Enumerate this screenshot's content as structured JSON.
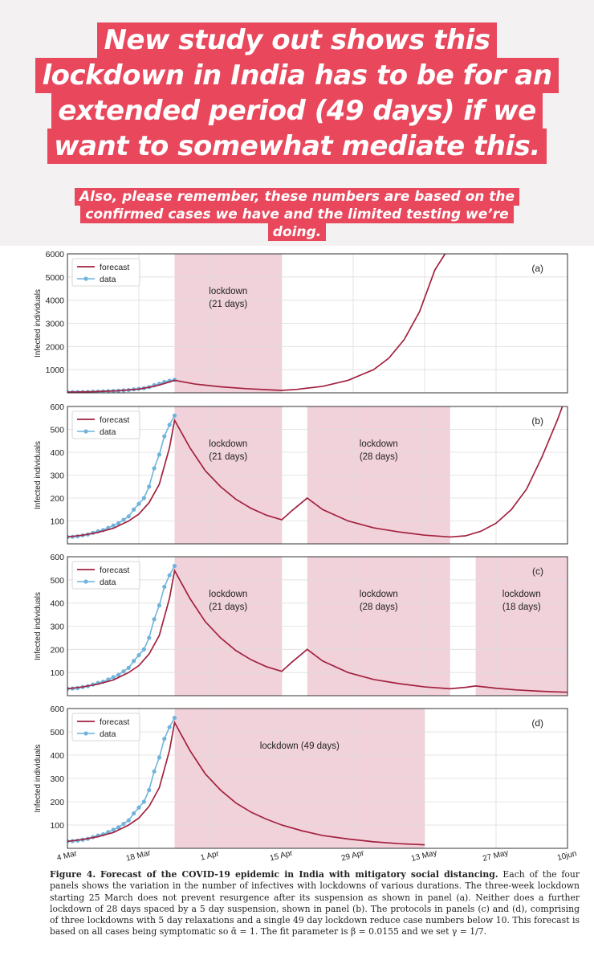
{
  "headline": {
    "lines": [
      "New study out shows this",
      "lockdown in India has to be for an",
      "extended period (49 days) if we",
      "want to somewhat mediate this."
    ]
  },
  "subtitle": {
    "lines": [
      "Also, please remember, these numbers are based on the",
      "confirmed cases we have and the limited testing we’re",
      "doing."
    ]
  },
  "colors": {
    "accent": "#e8475c",
    "forecast": "#a3213f",
    "data": "#6fb4dc",
    "shade": "#f1d2da"
  },
  "chart_data": {
    "type": "line",
    "ylabel": "Infected individuals",
    "x_axis": {
      "start_label": "4 Mar",
      "end_label": "10 Jun",
      "ticks": [
        {
          "day": 0,
          "label": "4 Mar"
        },
        {
          "day": 14,
          "label": "18 Mar"
        },
        {
          "day": 28,
          "label": "1 Apr"
        },
        {
          "day": 42,
          "label": "15 Apr"
        },
        {
          "day": 56,
          "label": "29 Apr"
        },
        {
          "day": 70,
          "label": "13 May"
        },
        {
          "day": 84,
          "label": "27 May"
        },
        {
          "day": 98,
          "label": "10jun"
        }
      ]
    },
    "observed_data": {
      "days": [
        0,
        1,
        2,
        3,
        4,
        5,
        6,
        7,
        8,
        9,
        10,
        11,
        12,
        13,
        14,
        15,
        16,
        17,
        18,
        19,
        20,
        21
      ],
      "values": [
        30,
        31,
        33,
        37,
        41,
        48,
        55,
        60,
        70,
        80,
        90,
        105,
        120,
        150,
        175,
        200,
        250,
        330,
        390,
        470,
        520,
        560
      ]
    },
    "legend": {
      "forecast": "forecast",
      "data": "data"
    },
    "panels": [
      {
        "id": "a",
        "tag": "(a)",
        "ylim": [
          0,
          6000
        ],
        "yticks": [
          "6000",
          "5000",
          "4000",
          "3000",
          "2000",
          "1000"
        ],
        "ytick_values": [
          6000,
          5000,
          4000,
          3000,
          2000,
          1000
        ],
        "lockdowns": [
          {
            "start": 21,
            "end": 42,
            "label_lines": [
              "lockdown",
              "(21 days)"
            ]
          }
        ],
        "forecast": [
          [
            0,
            30
          ],
          [
            5,
            50
          ],
          [
            10,
            90
          ],
          [
            14,
            160
          ],
          [
            17,
            280
          ],
          [
            19,
            400
          ],
          [
            21,
            540
          ],
          [
            25,
            380
          ],
          [
            30,
            260
          ],
          [
            35,
            180
          ],
          [
            40,
            125
          ],
          [
            42,
            105
          ],
          [
            45,
            150
          ],
          [
            50,
            280
          ],
          [
            55,
            540
          ],
          [
            60,
            1000
          ],
          [
            63,
            1500
          ],
          [
            66,
            2300
          ],
          [
            69,
            3500
          ],
          [
            72,
            5300
          ],
          [
            74,
            6000
          ]
        ]
      },
      {
        "id": "b",
        "tag": "(b)",
        "ylim": [
          0,
          600
        ],
        "yticks": [
          "600",
          "500",
          "400",
          "300",
          "200",
          "100"
        ],
        "ytick_values": [
          600,
          500,
          400,
          300,
          200,
          100
        ],
        "lockdowns": [
          {
            "start": 21,
            "end": 42,
            "label_lines": [
              "lockdown",
              "(21 days)"
            ]
          },
          {
            "start": 47,
            "end": 75,
            "label_lines": [
              "lockdown",
              "(28 days)"
            ]
          }
        ],
        "forecast": [
          [
            0,
            30
          ],
          [
            3,
            38
          ],
          [
            6,
            50
          ],
          [
            9,
            68
          ],
          [
            12,
            100
          ],
          [
            14,
            130
          ],
          [
            16,
            180
          ],
          [
            18,
            260
          ],
          [
            20,
            420
          ],
          [
            21,
            540
          ],
          [
            24,
            420
          ],
          [
            27,
            320
          ],
          [
            30,
            250
          ],
          [
            33,
            195
          ],
          [
            36,
            155
          ],
          [
            39,
            125
          ],
          [
            42,
            105
          ],
          [
            44,
            145
          ],
          [
            47,
            200
          ],
          [
            50,
            150
          ],
          [
            55,
            100
          ],
          [
            60,
            70
          ],
          [
            65,
            52
          ],
          [
            70,
            38
          ],
          [
            75,
            30
          ],
          [
            78,
            35
          ],
          [
            81,
            55
          ],
          [
            84,
            90
          ],
          [
            87,
            150
          ],
          [
            90,
            240
          ],
          [
            93,
            380
          ],
          [
            96,
            540
          ],
          [
            97,
            600
          ]
        ]
      },
      {
        "id": "c",
        "tag": "(c)",
        "ylim": [
          0,
          600
        ],
        "yticks": [
          "600",
          "500",
          "400",
          "300",
          "200",
          "100"
        ],
        "ytick_values": [
          600,
          500,
          400,
          300,
          200,
          100
        ],
        "lockdowns": [
          {
            "start": 21,
            "end": 42,
            "label_lines": [
              "lockdown",
              "(21 days)"
            ]
          },
          {
            "start": 47,
            "end": 75,
            "label_lines": [
              "lockdown",
              "(28 days)"
            ]
          },
          {
            "start": 80,
            "end": 98,
            "label_lines": [
              "lockdown",
              "(18 days)"
            ]
          }
        ],
        "forecast": [
          [
            0,
            30
          ],
          [
            3,
            38
          ],
          [
            6,
            50
          ],
          [
            9,
            68
          ],
          [
            12,
            100
          ],
          [
            14,
            130
          ],
          [
            16,
            180
          ],
          [
            18,
            260
          ],
          [
            20,
            420
          ],
          [
            21,
            540
          ],
          [
            24,
            420
          ],
          [
            27,
            320
          ],
          [
            30,
            250
          ],
          [
            33,
            195
          ],
          [
            36,
            155
          ],
          [
            39,
            125
          ],
          [
            42,
            105
          ],
          [
            44,
            145
          ],
          [
            47,
            200
          ],
          [
            50,
            150
          ],
          [
            55,
            100
          ],
          [
            60,
            70
          ],
          [
            65,
            52
          ],
          [
            70,
            38
          ],
          [
            75,
            30
          ],
          [
            78,
            36
          ],
          [
            80,
            42
          ],
          [
            84,
            32
          ],
          [
            88,
            25
          ],
          [
            92,
            20
          ],
          [
            95,
            17
          ],
          [
            98,
            15
          ]
        ]
      },
      {
        "id": "d",
        "tag": "(d)",
        "ylim": [
          0,
          600
        ],
        "yticks": [
          "600",
          "500",
          "400",
          "300",
          "200",
          "100"
        ],
        "ytick_values": [
          600,
          500,
          400,
          300,
          200,
          100
        ],
        "lockdowns": [
          {
            "start": 21,
            "end": 70,
            "label_lines": [
              "lockdown (49 days)"
            ]
          }
        ],
        "forecast": [
          [
            0,
            30
          ],
          [
            3,
            38
          ],
          [
            6,
            50
          ],
          [
            9,
            68
          ],
          [
            12,
            100
          ],
          [
            14,
            130
          ],
          [
            16,
            180
          ],
          [
            18,
            260
          ],
          [
            20,
            420
          ],
          [
            21,
            540
          ],
          [
            24,
            420
          ],
          [
            27,
            320
          ],
          [
            30,
            250
          ],
          [
            33,
            195
          ],
          [
            36,
            155
          ],
          [
            39,
            125
          ],
          [
            42,
            100
          ],
          [
            46,
            75
          ],
          [
            50,
            55
          ],
          [
            55,
            40
          ],
          [
            60,
            28
          ],
          [
            65,
            20
          ],
          [
            70,
            15
          ]
        ]
      }
    ]
  },
  "caption": {
    "figure_label": "Figure 4.",
    "title": "Forecast of the COVID-19 epidemic in India with mitigatory social distancing.",
    "body": " Each of the four panels shows the variation in the number of infectives with lockdowns of various durations. The three-week lockdown starting 25 March does not prevent resurgence after its suspension as shown in panel (a). Neither does a further lockdown of 28 days spaced by a 5 day suspension, shown in panel (b). The protocols in panels (c) and (d), comprising of three lockdowns with 5 day relaxations and a single 49 day lockdown reduce case numbers below 10. This forecast is based on all cases being symptomatic so ᾱ = 1. The fit parameter is β = 0.0155 and we set γ = 1/7."
  }
}
